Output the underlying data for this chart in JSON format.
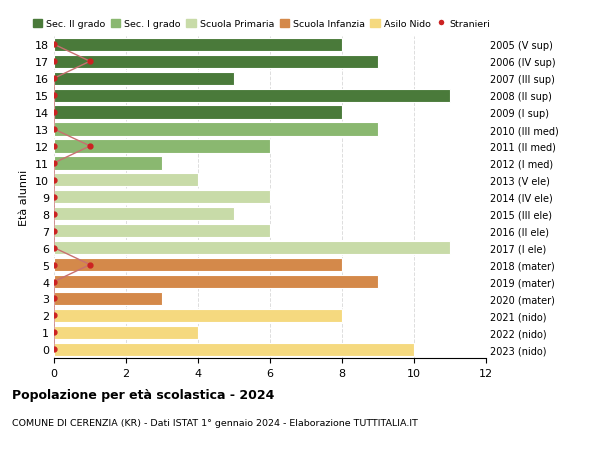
{
  "ages": [
    0,
    1,
    2,
    3,
    4,
    5,
    6,
    7,
    8,
    9,
    10,
    11,
    12,
    13,
    14,
    15,
    16,
    17,
    18
  ],
  "right_labels": [
    "2023 (nido)",
    "2022 (nido)",
    "2021 (nido)",
    "2020 (mater)",
    "2019 (mater)",
    "2018 (mater)",
    "2017 (I ele)",
    "2016 (II ele)",
    "2015 (III ele)",
    "2014 (IV ele)",
    "2013 (V ele)",
    "2012 (I med)",
    "2011 (II med)",
    "2010 (III med)",
    "2009 (I sup)",
    "2008 (II sup)",
    "2007 (III sup)",
    "2006 (IV sup)",
    "2005 (V sup)"
  ],
  "bar_values": [
    10,
    4,
    8,
    3,
    9,
    8,
    11,
    6,
    5,
    6,
    4,
    3,
    6,
    9,
    8,
    11,
    5,
    9,
    8
  ],
  "bar_colors": [
    "#f5d97f",
    "#f5d97f",
    "#f5d97f",
    "#d4894a",
    "#d4894a",
    "#d4894a",
    "#c8dba8",
    "#c8dba8",
    "#c8dba8",
    "#c8dba8",
    "#c8dba8",
    "#8ab870",
    "#8ab870",
    "#8ab870",
    "#4a7a3a",
    "#4a7a3a",
    "#4a7a3a",
    "#4a7a3a",
    "#4a7a3a"
  ],
  "stranieri_values": [
    0,
    0,
    0,
    0,
    0,
    1,
    0,
    0,
    0,
    0,
    0,
    0,
    1,
    0,
    0,
    0,
    0,
    1,
    0
  ],
  "legend_labels": [
    "Sec. II grado",
    "Sec. I grado",
    "Scuola Primaria",
    "Scuola Infanzia",
    "Asilo Nido",
    "Stranieri"
  ],
  "legend_colors": [
    "#4a7a3a",
    "#8ab870",
    "#c8dba8",
    "#d4894a",
    "#f5d97f",
    "#cc2222"
  ],
  "ylabel_left": "Età alunni",
  "title_bold": "Popolazione per età scolastica - 2024",
  "subtitle": "COMUNE DI CERENZIA (KR) - Dati ISTAT 1° gennaio 2024 - Elaborazione TUTTITALIA.IT",
  "xlim": [
    0,
    12
  ],
  "ylim": [
    -0.5,
    18.5
  ],
  "bg_color": "#ffffff",
  "grid_color": "#dddddd",
  "stranieri_color": "#cc2222",
  "stranieri_line_color": "#c87070"
}
